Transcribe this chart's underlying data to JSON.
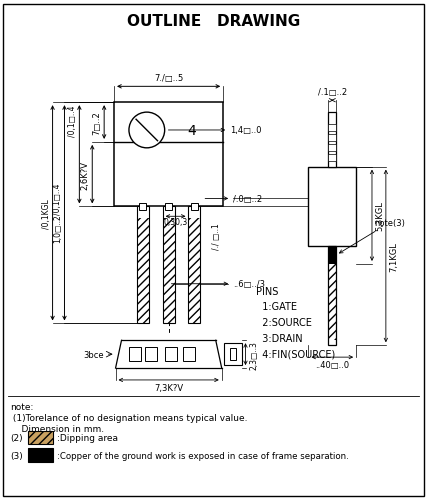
{
  "title": "OUTLINE   DRAWING",
  "title_fontsize": 11,
  "bg_color": "#ffffff",
  "pins_text": "PINS\n  1:GATE\n  2:SOURCE\n  3:DRAIN\n  4:FIN(SOURCE)",
  "note1": "note:",
  "note1b": " (1)Torelance of no designation means typical value.",
  "note1c": "    Dimension in mm.",
  "note2_prefix": "(2)",
  "note2_suffix": ":Dipping area",
  "note3_prefix": "(3)",
  "note3_suffix": ":Copper of the ground work is exposed in case of frame separation.",
  "label_top_width": "7./□..5",
  "label_body_h": "7□..2",
  "label_total_h1": "/0,1□..4",
  "label_total_h2": "1,0□..2",
  "label_2p6": "2,6K?V",
  "label_kgl": "/0,1KGL",
  "label_hole": "1,4□..0",
  "label_lead_w": "/.0□..2",
  "label_lead_t": "..6□../3",
  "label_spacing": "0,30,3",
  "label_lead_dim": "/./ □..1",
  "label_bot_w": "7,3K?V",
  "label_bot_h": "2,3□..3",
  "label_right_top": "/.1□..2",
  "label_5p3": "5,3KGL",
  "label_7p1": "7,1KGL",
  "label_40": "..40□..0",
  "label_note3": "note(3)",
  "label_3bce": "3bce"
}
